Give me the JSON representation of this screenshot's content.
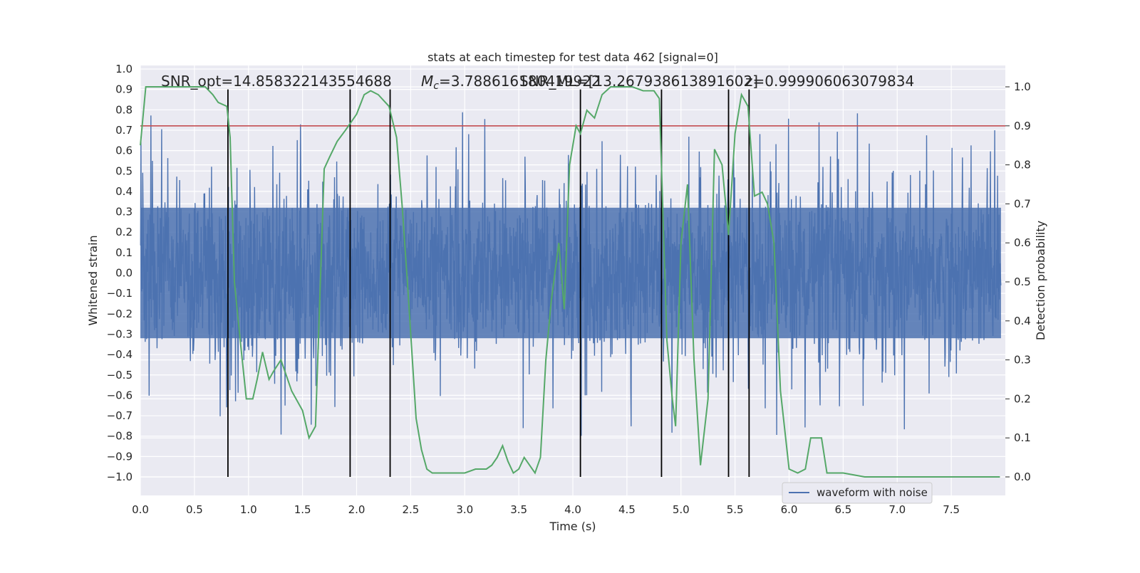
{
  "chart_data": {
    "type": "line",
    "title": "stats at each timestep for test data 462 [signal=0]",
    "xlabel": "Time (s)",
    "ylabel": "Whitened strain",
    "y2label": "Detection probability",
    "xlim": [
      0.0,
      8.0
    ],
    "ylim": [
      -1.0,
      1.0
    ],
    "y2lim": [
      0.0,
      1.0
    ],
    "x_ticks": [
      "0.0",
      "0.5",
      "1.0",
      "1.5",
      "2.0",
      "2.5",
      "3.0",
      "3.5",
      "4.0",
      "4.5",
      "5.0",
      "5.5",
      "6.0",
      "6.5",
      "7.0",
      "7.5"
    ],
    "y_ticks": [
      "1.0",
      "0.9",
      "0.8",
      "0.7",
      "0.6",
      "0.5",
      "0.4",
      "0.3",
      "0.2",
      "0.1",
      "0.0",
      "−0.1",
      "−0.2",
      "−0.3",
      "−0.4",
      "−0.5",
      "−0.6",
      "−0.7",
      "−0.8",
      "−0.9",
      "−1.0"
    ],
    "y2_ticks": [
      "1.0",
      "0.9",
      "0.8",
      "0.7",
      "0.6",
      "0.5",
      "0.4",
      "0.3",
      "0.2",
      "0.1",
      "0.0"
    ],
    "grid": true,
    "legend_position": "lower-right",
    "annotations": [
      "SNR_opt=14.858322143554688",
      "SNR_ML=[13.267938613891602]",
      "z=0.999906063079834"
    ],
    "mc_label": {
      "symbol": "M",
      "subscript": "c",
      "value": "=3.788616180419922"
    },
    "threshold_probability": 0.9,
    "vertical_lines_x": [
      0.81,
      1.94,
      2.31,
      4.07,
      4.82,
      5.44,
      5.63
    ],
    "vertical_lines_range": [
      -1.0,
      0.9
    ],
    "series": [
      {
        "name": "waveform with noise",
        "color": "#4c72b0",
        "noise_sigma": 0.2,
        "peak_envelope": 0.6
      },
      {
        "color": "#55a868",
        "axis": "right",
        "x": [
          0.0,
          0.05,
          0.1,
          0.2,
          0.3,
          0.4,
          0.5,
          0.6,
          0.67,
          0.72,
          0.8,
          0.83,
          0.87,
          0.92,
          0.98,
          1.04,
          1.08,
          1.13,
          1.19,
          1.23,
          1.3,
          1.4,
          1.5,
          1.56,
          1.62,
          1.7,
          1.75,
          1.82,
          1.9,
          2.0,
          2.07,
          2.13,
          2.2,
          2.3,
          2.37,
          2.42,
          2.47,
          2.55,
          2.6,
          2.65,
          2.7,
          2.8,
          2.9,
          3.0,
          3.1,
          3.2,
          3.25,
          3.3,
          3.35,
          3.4,
          3.45,
          3.5,
          3.55,
          3.6,
          3.65,
          3.7,
          3.75,
          3.8,
          3.87,
          3.92,
          3.97,
          4.03,
          4.07,
          4.13,
          4.2,
          4.27,
          4.35,
          4.45,
          4.55,
          4.65,
          4.75,
          4.8,
          4.87,
          4.92,
          4.95,
          5.0,
          5.06,
          5.12,
          5.18,
          5.25,
          5.31,
          5.38,
          5.44,
          5.5,
          5.56,
          5.62,
          5.68,
          5.75,
          5.8,
          5.86,
          5.92,
          6.0,
          6.08,
          6.15,
          6.2,
          6.25,
          6.3,
          6.35,
          6.4,
          6.5,
          6.7,
          6.9,
          7.2,
          7.5,
          7.7,
          7.95
        ],
        "y": [
          0.85,
          1.0,
          1.0,
          1.0,
          1.0,
          1.0,
          1.0,
          1.0,
          0.98,
          0.96,
          0.95,
          0.87,
          0.5,
          0.36,
          0.2,
          0.2,
          0.25,
          0.32,
          0.25,
          0.27,
          0.3,
          0.22,
          0.17,
          0.1,
          0.13,
          0.79,
          0.82,
          0.86,
          0.89,
          0.93,
          0.98,
          0.99,
          0.98,
          0.95,
          0.87,
          0.7,
          0.5,
          0.15,
          0.07,
          0.02,
          0.01,
          0.01,
          0.01,
          0.01,
          0.02,
          0.02,
          0.03,
          0.05,
          0.08,
          0.04,
          0.01,
          0.02,
          0.05,
          0.03,
          0.01,
          0.05,
          0.3,
          0.45,
          0.6,
          0.43,
          0.8,
          0.9,
          0.88,
          0.94,
          0.92,
          0.98,
          1.0,
          1.0,
          1.0,
          0.99,
          0.99,
          0.97,
          0.35,
          0.2,
          0.13,
          0.6,
          0.75,
          0.3,
          0.03,
          0.2,
          0.84,
          0.8,
          0.62,
          0.88,
          0.98,
          0.95,
          0.72,
          0.73,
          0.7,
          0.6,
          0.22,
          0.02,
          0.01,
          0.02,
          0.1,
          0.1,
          0.1,
          0.01,
          0.01,
          0.01,
          0.0,
          0.0,
          0.0,
          0.0,
          0.0,
          0.0
        ]
      }
    ]
  }
}
